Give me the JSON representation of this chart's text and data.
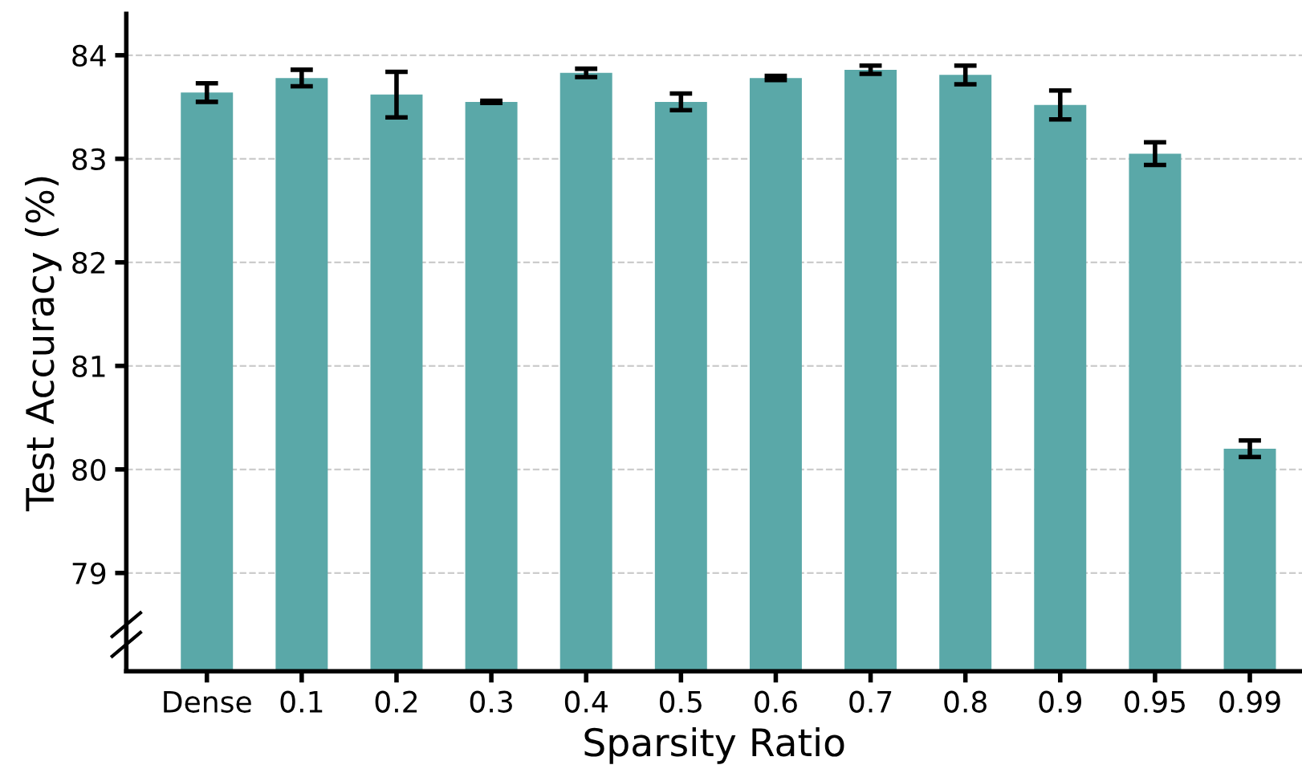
{
  "chart_data": {
    "type": "bar",
    "xlabel": "Sparsity Ratio",
    "ylabel": "Test Accuracy (%)",
    "categories": [
      "Dense",
      "0.1",
      "0.2",
      "0.3",
      "0.4",
      "0.5",
      "0.6",
      "0.7",
      "0.8",
      "0.9",
      "0.95",
      "0.99"
    ],
    "values": [
      83.64,
      83.78,
      83.62,
      83.55,
      83.83,
      83.55,
      83.78,
      83.86,
      83.81,
      83.52,
      83.05,
      80.2
    ],
    "errors": [
      0.09,
      0.08,
      0.22,
      0.01,
      0.04,
      0.08,
      0.02,
      0.04,
      0.09,
      0.14,
      0.11,
      0.08
    ],
    "color": "#5aa8a8",
    "ylim": [
      78.05,
      84.4
    ],
    "yticks": [
      79,
      80,
      81,
      82,
      83,
      84
    ],
    "grid": "y"
  }
}
